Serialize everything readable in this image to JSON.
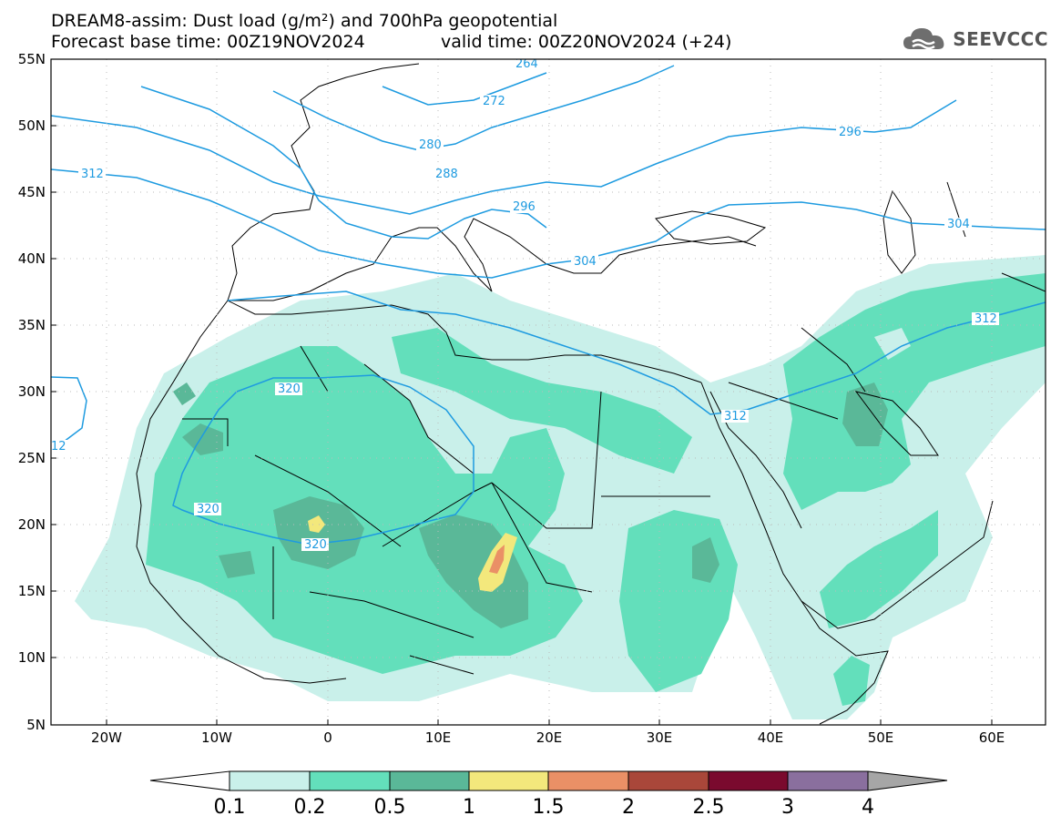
{
  "title_line1": "DREAM8-assim: Dust load (g/m²) and 700hPa geopotential",
  "title_line2a": "Forecast base time: 00Z19NOV2024",
  "title_line2b": "valid time: 00Z20NOV2024 (+24)",
  "logo_text": "SEEVCCC",
  "map": {
    "projection": "lat-lon",
    "lon_range": [
      -25,
      65
    ],
    "lat_range": [
      5,
      55
    ],
    "lon_ticks": [
      "20W",
      "10W",
      "0",
      "10E",
      "20E",
      "30E",
      "40E",
      "50E",
      "60E"
    ],
    "lat_ticks": [
      "55N",
      "50N",
      "45N",
      "40N",
      "35N",
      "30N",
      "25N",
      "20N",
      "15N",
      "10N",
      "5N"
    ],
    "contour_labels": [
      "264",
      "272",
      "280",
      "288",
      "296",
      "296",
      "304",
      "304",
      "312",
      "312",
      "312",
      "320",
      "320",
      "320",
      "12"
    ]
  },
  "colorbar": {
    "labels": [
      "0.1",
      "0.2",
      "0.5",
      "1",
      "1.5",
      "2",
      "2.5",
      "3",
      "4"
    ],
    "colors": [
      "#c9f0ea",
      "#63dfbb",
      "#5ab898",
      "#f3e87c",
      "#ea9066",
      "#a9473a",
      "#7a0a2e",
      "#8a6f9e",
      "#a6a6a6"
    ]
  }
}
